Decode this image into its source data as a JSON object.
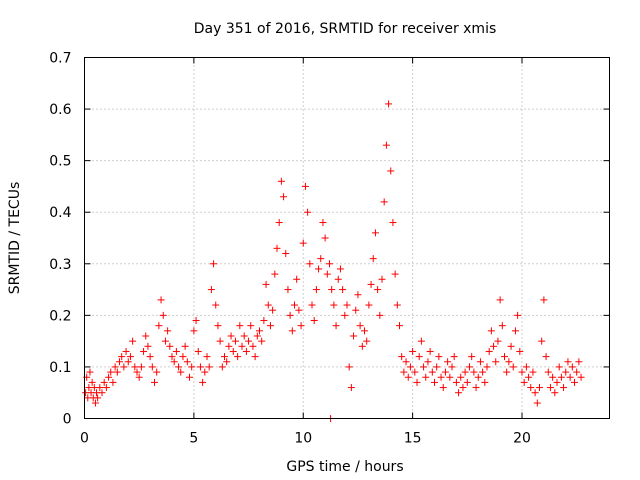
{
  "chart_data": {
    "type": "scatter",
    "title": "Day 351 of 2016, SRMTID for receiver xmis",
    "xlabel": "GPS time / hours",
    "ylabel": "SRMTID / TECUs",
    "xlim": [
      0,
      24
    ],
    "ylim": [
      0,
      0.7
    ],
    "xticks": [
      0,
      5,
      10,
      15,
      20
    ],
    "yticks": [
      0,
      0.1,
      0.2,
      0.3,
      0.4,
      0.5,
      0.6,
      0.7
    ],
    "ytick_labels": [
      "0",
      "0.1",
      "0.2",
      "0.3",
      "0.4",
      "0.5",
      "0.6",
      "0.7"
    ],
    "grid": true,
    "marker": "plus",
    "color": "#ff0000",
    "series": [
      {
        "name": "SRMTID",
        "points": [
          [
            0.05,
            0.05
          ],
          [
            0.1,
            0.08
          ],
          [
            0.15,
            0.04
          ],
          [
            0.2,
            0.06
          ],
          [
            0.25,
            0.09
          ],
          [
            0.3,
            0.05
          ],
          [
            0.35,
            0.07
          ],
          [
            0.4,
            0.04
          ],
          [
            0.45,
            0.06
          ],
          [
            0.5,
            0.03
          ],
          [
            0.55,
            0.05
          ],
          [
            0.6,
            0.04
          ],
          [
            0.7,
            0.06
          ],
          [
            0.8,
            0.05
          ],
          [
            0.9,
            0.07
          ],
          [
            1.0,
            0.06
          ],
          [
            1.1,
            0.08
          ],
          [
            1.2,
            0.09
          ],
          [
            1.3,
            0.07
          ],
          [
            1.4,
            0.1
          ],
          [
            1.5,
            0.09
          ],
          [
            1.6,
            0.11
          ],
          [
            1.7,
            0.12
          ],
          [
            1.8,
            0.1
          ],
          [
            1.9,
            0.13
          ],
          [
            2.0,
            0.11
          ],
          [
            2.1,
            0.12
          ],
          [
            2.2,
            0.15
          ],
          [
            2.3,
            0.1
          ],
          [
            2.4,
            0.09
          ],
          [
            2.5,
            0.08
          ],
          [
            2.6,
            0.1
          ],
          [
            2.7,
            0.13
          ],
          [
            2.8,
            0.16
          ],
          [
            2.9,
            0.14
          ],
          [
            3.0,
            0.12
          ],
          [
            3.1,
            0.1
          ],
          [
            3.2,
            0.07
          ],
          [
            3.3,
            0.09
          ],
          [
            3.4,
            0.18
          ],
          [
            3.5,
            0.23
          ],
          [
            3.6,
            0.2
          ],
          [
            3.7,
            0.15
          ],
          [
            3.8,
            0.17
          ],
          [
            3.9,
            0.14
          ],
          [
            4.0,
            0.12
          ],
          [
            4.1,
            0.11
          ],
          [
            4.2,
            0.13
          ],
          [
            4.3,
            0.1
          ],
          [
            4.4,
            0.09
          ],
          [
            4.5,
            0.12
          ],
          [
            4.6,
            0.14
          ],
          [
            4.7,
            0.11
          ],
          [
            4.8,
            0.08
          ],
          [
            4.9,
            0.1
          ],
          [
            5.0,
            0.17
          ],
          [
            5.1,
            0.19
          ],
          [
            5.2,
            0.13
          ],
          [
            5.3,
            0.1
          ],
          [
            5.4,
            0.07
          ],
          [
            5.5,
            0.09
          ],
          [
            5.6,
            0.12
          ],
          [
            5.7,
            0.1
          ],
          [
            5.8,
            0.25
          ],
          [
            5.9,
            0.3
          ],
          [
            6.0,
            0.22
          ],
          [
            6.1,
            0.18
          ],
          [
            6.2,
            0.15
          ],
          [
            6.3,
            0.1
          ],
          [
            6.4,
            0.12
          ],
          [
            6.5,
            0.11
          ],
          [
            6.6,
            0.14
          ],
          [
            6.7,
            0.16
          ],
          [
            6.8,
            0.13
          ],
          [
            6.9,
            0.15
          ],
          [
            7.0,
            0.12
          ],
          [
            7.1,
            0.18
          ],
          [
            7.2,
            0.14
          ],
          [
            7.3,
            0.16
          ],
          [
            7.4,
            0.13
          ],
          [
            7.5,
            0.15
          ],
          [
            7.6,
            0.18
          ],
          [
            7.7,
            0.14
          ],
          [
            7.8,
            0.12
          ],
          [
            7.9,
            0.16
          ],
          [
            8.0,
            0.17
          ],
          [
            8.1,
            0.15
          ],
          [
            8.2,
            0.19
          ],
          [
            8.3,
            0.26
          ],
          [
            8.4,
            0.22
          ],
          [
            8.5,
            0.18
          ],
          [
            8.6,
            0.21
          ],
          [
            8.7,
            0.28
          ],
          [
            8.8,
            0.33
          ],
          [
            8.9,
            0.38
          ],
          [
            9.0,
            0.46
          ],
          [
            9.1,
            0.43
          ],
          [
            9.2,
            0.32
          ],
          [
            9.3,
            0.25
          ],
          [
            9.4,
            0.2
          ],
          [
            9.5,
            0.17
          ],
          [
            9.6,
            0.22
          ],
          [
            9.7,
            0.27
          ],
          [
            9.8,
            0.21
          ],
          [
            9.9,
            0.18
          ],
          [
            10.0,
            0.34
          ],
          [
            10.1,
            0.45
          ],
          [
            10.2,
            0.4
          ],
          [
            10.3,
            0.3
          ],
          [
            10.4,
            0.22
          ],
          [
            10.5,
            0.19
          ],
          [
            10.6,
            0.25
          ],
          [
            10.7,
            0.29
          ],
          [
            10.8,
            0.31
          ],
          [
            10.9,
            0.38
          ],
          [
            11.0,
            0.35
          ],
          [
            11.1,
            0.28
          ],
          [
            11.2,
            0.3
          ],
          [
            11.25,
            0.0
          ],
          [
            11.3,
            0.25
          ],
          [
            11.4,
            0.22
          ],
          [
            11.5,
            0.18
          ],
          [
            11.6,
            0.27
          ],
          [
            11.7,
            0.29
          ],
          [
            11.8,
            0.25
          ],
          [
            11.9,
            0.2
          ],
          [
            12.0,
            0.22
          ],
          [
            12.1,
            0.1
          ],
          [
            12.2,
            0.06
          ],
          [
            12.3,
            0.16
          ],
          [
            12.4,
            0.21
          ],
          [
            12.5,
            0.24
          ],
          [
            12.6,
            0.18
          ],
          [
            12.7,
            0.14
          ],
          [
            12.8,
            0.17
          ],
          [
            12.9,
            0.15
          ],
          [
            13.0,
            0.22
          ],
          [
            13.1,
            0.26
          ],
          [
            13.2,
            0.31
          ],
          [
            13.3,
            0.36
          ],
          [
            13.4,
            0.25
          ],
          [
            13.5,
            0.2
          ],
          [
            13.6,
            0.27
          ],
          [
            13.7,
            0.42
          ],
          [
            13.8,
            0.53
          ],
          [
            13.9,
            0.61
          ],
          [
            14.0,
            0.48
          ],
          [
            14.1,
            0.38
          ],
          [
            14.2,
            0.28
          ],
          [
            14.3,
            0.22
          ],
          [
            14.4,
            0.18
          ],
          [
            14.5,
            0.12
          ],
          [
            14.6,
            0.09
          ],
          [
            14.7,
            0.11
          ],
          [
            14.8,
            0.08
          ],
          [
            14.9,
            0.1
          ],
          [
            15.0,
            0.13
          ],
          [
            15.1,
            0.09
          ],
          [
            15.2,
            0.07
          ],
          [
            15.3,
            0.12
          ],
          [
            15.4,
            0.15
          ],
          [
            15.5,
            0.1
          ],
          [
            15.6,
            0.08
          ],
          [
            15.7,
            0.11
          ],
          [
            15.8,
            0.13
          ],
          [
            15.9,
            0.09
          ],
          [
            16.0,
            0.07
          ],
          [
            16.1,
            0.1
          ],
          [
            16.2,
            0.12
          ],
          [
            16.3,
            0.08
          ],
          [
            16.4,
            0.06
          ],
          [
            16.5,
            0.09
          ],
          [
            16.6,
            0.11
          ],
          [
            16.7,
            0.08
          ],
          [
            16.8,
            0.1
          ],
          [
            16.9,
            0.12
          ],
          [
            17.0,
            0.07
          ],
          [
            17.1,
            0.05
          ],
          [
            17.2,
            0.08
          ],
          [
            17.3,
            0.06
          ],
          [
            17.4,
            0.09
          ],
          [
            17.5,
            0.07
          ],
          [
            17.6,
            0.1
          ],
          [
            17.7,
            0.12
          ],
          [
            17.8,
            0.09
          ],
          [
            17.9,
            0.06
          ],
          [
            18.0,
            0.08
          ],
          [
            18.1,
            0.11
          ],
          [
            18.2,
            0.09
          ],
          [
            18.3,
            0.07
          ],
          [
            18.4,
            0.1
          ],
          [
            18.5,
            0.13
          ],
          [
            18.6,
            0.17
          ],
          [
            18.7,
            0.14
          ],
          [
            18.8,
            0.11
          ],
          [
            18.9,
            0.15
          ],
          [
            19.0,
            0.23
          ],
          [
            19.1,
            0.18
          ],
          [
            19.2,
            0.12
          ],
          [
            19.3,
            0.09
          ],
          [
            19.4,
            0.11
          ],
          [
            19.5,
            0.14
          ],
          [
            19.6,
            0.1
          ],
          [
            19.7,
            0.17
          ],
          [
            19.8,
            0.2
          ],
          [
            19.9,
            0.13
          ],
          [
            20.0,
            0.09
          ],
          [
            20.1,
            0.07
          ],
          [
            20.2,
            0.1
          ],
          [
            20.3,
            0.08
          ],
          [
            20.4,
            0.06
          ],
          [
            20.5,
            0.09
          ],
          [
            20.6,
            0.05
          ],
          [
            20.7,
            0.03
          ],
          [
            20.8,
            0.06
          ],
          [
            20.9,
            0.15
          ],
          [
            21.0,
            0.23
          ],
          [
            21.1,
            0.12
          ],
          [
            21.2,
            0.09
          ],
          [
            21.3,
            0.06
          ],
          [
            21.4,
            0.08
          ],
          [
            21.5,
            0.05
          ],
          [
            21.6,
            0.07
          ],
          [
            21.7,
            0.1
          ],
          [
            21.8,
            0.08
          ],
          [
            21.9,
            0.06
          ],
          [
            22.0,
            0.09
          ],
          [
            22.1,
            0.11
          ],
          [
            22.2,
            0.08
          ],
          [
            22.3,
            0.1
          ],
          [
            22.4,
            0.07
          ],
          [
            22.5,
            0.09
          ],
          [
            22.6,
            0.11
          ],
          [
            22.7,
            0.08
          ]
        ]
      }
    ]
  }
}
